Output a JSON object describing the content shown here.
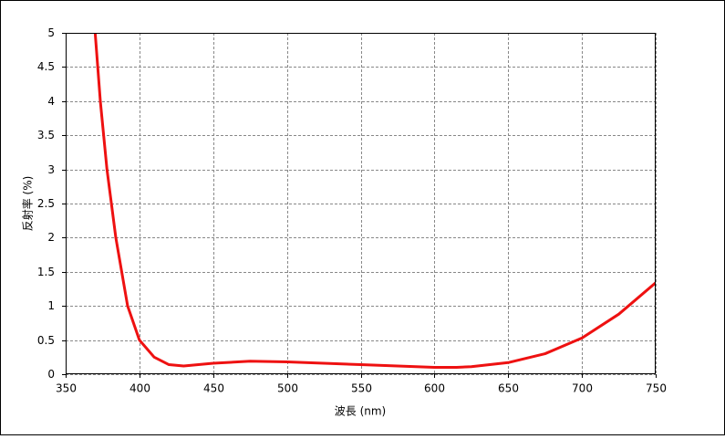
{
  "chart_data": {
    "type": "line",
    "x_label": "波長 (nm)",
    "y_label": "反射率 (%)",
    "x": [
      370,
      373.5,
      378,
      384,
      392,
      400,
      410,
      420,
      430,
      450,
      475,
      500,
      525,
      550,
      575,
      600,
      615,
      625,
      650,
      675,
      700,
      725,
      750
    ],
    "series": [
      {
        "name": "反射率",
        "color": "#ee1111",
        "values": [
          5.0,
          4.0,
          3.0,
          2.0,
          1.0,
          0.5,
          0.25,
          0.14,
          0.12,
          0.16,
          0.19,
          0.18,
          0.16,
          0.14,
          0.12,
          0.1,
          0.1,
          0.11,
          0.17,
          0.3,
          0.53,
          0.88,
          1.34
        ]
      }
    ],
    "xlim": [
      350,
      750
    ],
    "xticks": [
      350,
      400,
      450,
      500,
      550,
      600,
      650,
      700,
      750
    ],
    "ylim": [
      0,
      5
    ],
    "yticks": [
      0,
      0.5,
      1,
      1.5,
      2,
      2.5,
      3,
      3.5,
      4,
      4.5,
      5
    ],
    "grid": true
  }
}
